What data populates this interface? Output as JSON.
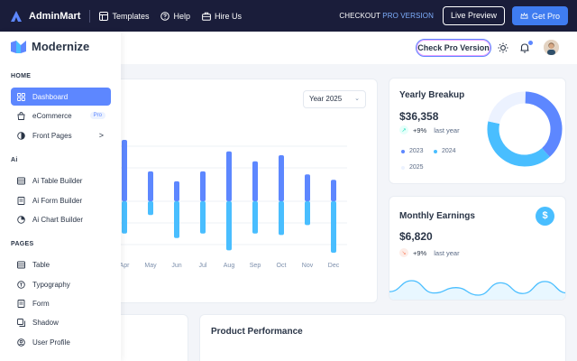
{
  "promo_bar": {
    "brand": "AdminMart",
    "links": [
      "Templates",
      "Help",
      "Hire Us"
    ],
    "checkout_prefix": "CHECKOUT",
    "checkout_accent": "PRO VERSION",
    "live_preview": "Live Preview",
    "get_pro": "Get Pro"
  },
  "header": {
    "check_pro": "Check Pro Version"
  },
  "sidebar": {
    "brand": "Modernize",
    "sections": {
      "home": "HOME",
      "ai": "Ai",
      "pages": "PAGES"
    },
    "items": [
      {
        "label": "Dashboard",
        "icon": "dashboard-icon",
        "active": true
      },
      {
        "label": "eCommerce",
        "icon": "shopping-bag-icon",
        "badge": "Pro"
      },
      {
        "label": "Front Pages",
        "icon": "layers-icon",
        "chevron": ">"
      },
      {
        "label": "Ai Table Builder",
        "icon": "table-icon"
      },
      {
        "label": "Ai Form Builder",
        "icon": "form-icon"
      },
      {
        "label": "Ai Chart Builder",
        "icon": "chart-pie-icon"
      },
      {
        "label": "Table",
        "icon": "table-icon"
      },
      {
        "label": "Typography",
        "icon": "typography-icon"
      },
      {
        "label": "Form",
        "icon": "form-icon"
      },
      {
        "label": "Shadow",
        "icon": "shadow-icon"
      },
      {
        "label": "User Profile",
        "icon": "user-icon"
      }
    ]
  },
  "sales_overview": {
    "year_select": "Year 2025",
    "chart_data": {
      "type": "bar",
      "categories": [
        "Apr",
        "May",
        "Jun",
        "Jul",
        "Aug",
        "Sep",
        "Oct",
        "Nov",
        "Dec"
      ],
      "series": [
        {
          "values": [
            80,
            39,
            26,
            39,
            65,
            52,
            60,
            35,
            28
          ]
        },
        {
          "values": [
            -42,
            -18,
            -48,
            -42,
            -64,
            -42,
            -44,
            -31,
            -67
          ]
        }
      ],
      "colors": [
        "#5d87ff",
        "#49beff"
      ]
    }
  },
  "yearly_breakup": {
    "title": "Yearly Breakup",
    "value": "$36,358",
    "trend_pct": "+9%",
    "trend_label": "last year",
    "legend": [
      "2023",
      "2024",
      "2025"
    ],
    "chart_data": {
      "type": "pie",
      "categories": [
        "2023",
        "2024",
        "2025"
      ],
      "values": [
        38,
        40,
        22
      ],
      "colors": [
        "#5d87ff",
        "#49beff",
        "#ecf2ff"
      ]
    }
  },
  "monthly_earnings": {
    "title": "Monthly Earnings",
    "value": "$6,820",
    "trend_pct": "+9%",
    "trend_label": "last year",
    "icon": "dollar-icon",
    "icon_glyph": "$",
    "chart_data": {
      "type": "area",
      "values": [
        25,
        66,
        20,
        40,
        12,
        58,
        18,
        63,
        20
      ]
    }
  },
  "product_performance": {
    "title": "Product Performance"
  }
}
